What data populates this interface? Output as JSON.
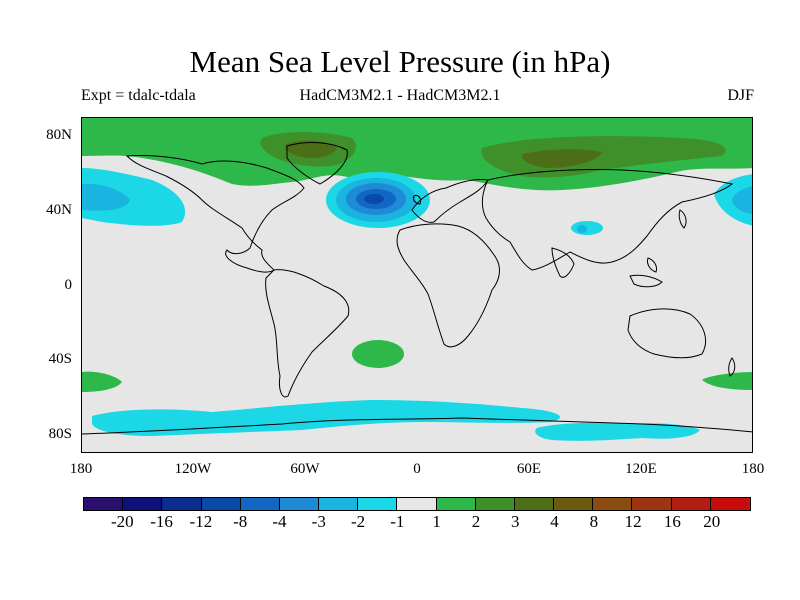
{
  "figure": {
    "title": "Mean Sea Level Pressure (in hPa)",
    "experiment": "Expt = tdalc-tdala",
    "models": "HadCM3M2.1 - HadCM3M2.1",
    "season": "DJF"
  },
  "axes": {
    "y_ticks": [
      "80N",
      "40N",
      "0",
      "40S",
      "80S"
    ],
    "x_ticks": [
      "180",
      "120W",
      "60W",
      "0",
      "60E",
      "120E",
      "180"
    ]
  },
  "colorbar": {
    "colors": [
      "#2b0f6e",
      "#0c127a",
      "#0a2d8f",
      "#0b49a8",
      "#1267c4",
      "#1f8bd6",
      "#19b4e0",
      "#1cd8e6",
      "#e6e6e6",
      "#2fb84a",
      "#3f8f2a",
      "#4d6e18",
      "#6b5a12",
      "#8a4c0f",
      "#9e3510",
      "#b21c12",
      "#c80c0c"
    ],
    "labels": [
      "-20",
      "-16",
      "-12",
      "-8",
      "-4",
      "-3",
      "-2",
      "-1",
      "1",
      "2",
      "3",
      "4",
      "8",
      "12",
      "16",
      "20"
    ]
  },
  "map_colors": {
    "ocean_background": "#e6e6e6",
    "negative_1_2": "#1cd8e6",
    "negative_2_3": "#19b4e0",
    "negative_3_4": "#1f8bd6",
    "negative_4_8": "#1267c4",
    "negative_8_12": "#0b49a8",
    "positive_1_2": "#2fb84a",
    "positive_2_3": "#3f8f2a",
    "positive_3_4": "#4d6e18"
  }
}
